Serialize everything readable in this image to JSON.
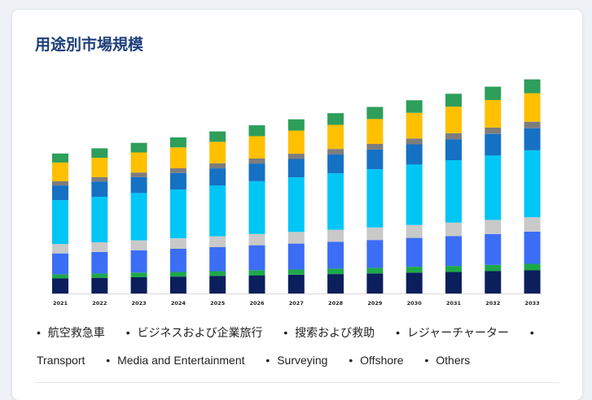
{
  "page": {
    "title": "用途別市場規模"
  },
  "chart_data": {
    "type": "bar",
    "stacked": true,
    "title": "用途別市場規模",
    "xlabel": "",
    "ylabel": "",
    "categories": [
      "2021",
      "2022",
      "2023",
      "2024",
      "2025",
      "2026",
      "2027",
      "2028",
      "2029",
      "2030",
      "2031",
      "2032",
      "2033"
    ],
    "ylim": [
      0,
      100
    ],
    "grid": false,
    "legend_position": "bottom",
    "series": [
      {
        "name": "航空救急車",
        "color": "#0a1f5c",
        "values": [
          7.2,
          7.5,
          7.8,
          8.1,
          8.4,
          8.7,
          9.0,
          9.3,
          9.6,
          10.0,
          10.3,
          10.7,
          11.1
        ]
      },
      {
        "name": "ビジネスおよび企業旅行",
        "color": "#1ea84a",
        "values": [
          2.0,
          2.1,
          2.2,
          2.2,
          2.3,
          2.4,
          2.5,
          2.6,
          2.7,
          2.8,
          2.9,
          3.0,
          3.1
        ]
      },
      {
        "name": "搜索および救助",
        "color": "#3b6ef5",
        "values": [
          10.0,
          10.3,
          10.7,
          11.1,
          11.5,
          12.0,
          12.4,
          12.8,
          13.3,
          13.8,
          14.3,
          14.8,
          15.4
        ]
      },
      {
        "name": "レジャーチャーター",
        "color": "#c9c9c9",
        "values": [
          4.5,
          4.6,
          4.8,
          5.0,
          5.2,
          5.4,
          5.6,
          5.8,
          6.0,
          6.2,
          6.4,
          6.7,
          6.9
        ]
      },
      {
        "name": "Transport",
        "color": "#00c6f6",
        "values": [
          21.0,
          21.8,
          22.6,
          23.4,
          24.3,
          25.2,
          26.1,
          27.0,
          27.9,
          28.9,
          29.9,
          30.9,
          32.0
        ]
      },
      {
        "name": "Media and Entertainment",
        "color": "#1571c4",
        "values": [
          7.0,
          7.3,
          7.6,
          7.9,
          8.2,
          8.5,
          8.8,
          9.1,
          9.4,
          9.7,
          10.0,
          10.3,
          10.6
        ]
      },
      {
        "name": "Surveying",
        "color": "#7d7d7d",
        "values": [
          2.0,
          2.1,
          2.2,
          2.3,
          2.4,
          2.4,
          2.5,
          2.6,
          2.7,
          2.8,
          2.9,
          3.0,
          3.1
        ]
      },
      {
        "name": "Offshore",
        "color": "#ffc000",
        "values": [
          9.0,
          9.3,
          9.6,
          9.9,
          10.3,
          10.7,
          11.1,
          11.5,
          11.9,
          12.3,
          12.7,
          13.2,
          13.7
        ]
      },
      {
        "name": "Others",
        "color": "#2e9e5b",
        "values": [
          4.3,
          4.5,
          4.6,
          4.8,
          5.0,
          5.2,
          5.4,
          5.6,
          5.8,
          6.0,
          6.2,
          6.4,
          6.6
        ]
      }
    ]
  },
  "legend": {
    "bullet": "•",
    "items": [
      "航空救急車",
      "ビジネスおよび企業旅行",
      "搜索および救助",
      "レジャーチャーター",
      "Transport",
      "Media and Entertainment",
      "Surveying",
      "Offshore",
      "Others"
    ]
  }
}
